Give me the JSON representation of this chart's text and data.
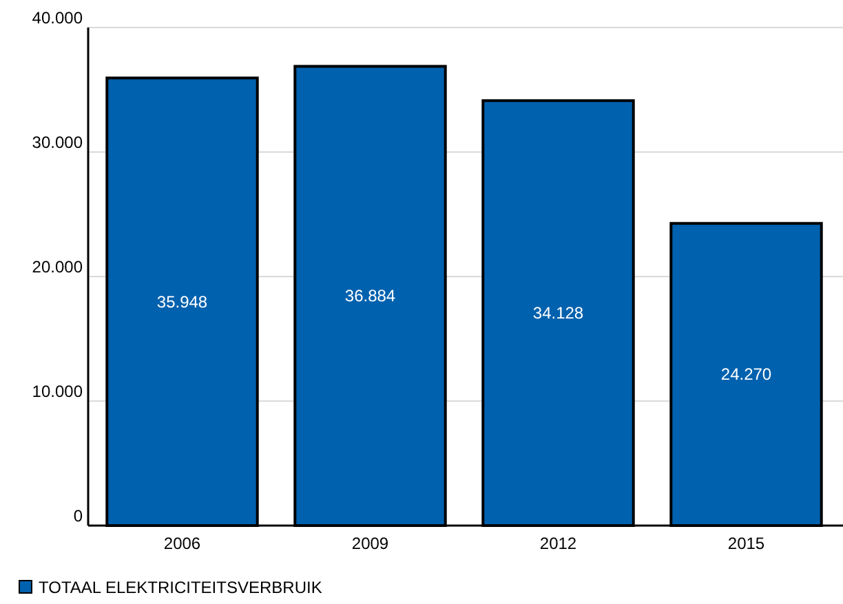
{
  "chart_data": {
    "type": "bar",
    "categories": [
      "2006",
      "2009",
      "2012",
      "2015"
    ],
    "series": [
      {
        "name": "TOTAAL ELEKTRICITEITSVERBRUIK",
        "color": "#0061ae",
        "values": [
          35948,
          36884,
          34128,
          24270
        ],
        "value_labels": [
          "35.948",
          "36.884",
          "34.128",
          "24.270"
        ]
      }
    ],
    "ylim": [
      0,
      40000
    ],
    "yticks": [
      {
        "value": 0,
        "label": "0"
      },
      {
        "value": 10000,
        "label": "10.000"
      },
      {
        "value": 20000,
        "label": "20.000"
      },
      {
        "value": 30000,
        "label": "30.000"
      },
      {
        "value": 40000,
        "label": "40.000"
      }
    ],
    "grid": "y",
    "legend": "bottom left"
  }
}
